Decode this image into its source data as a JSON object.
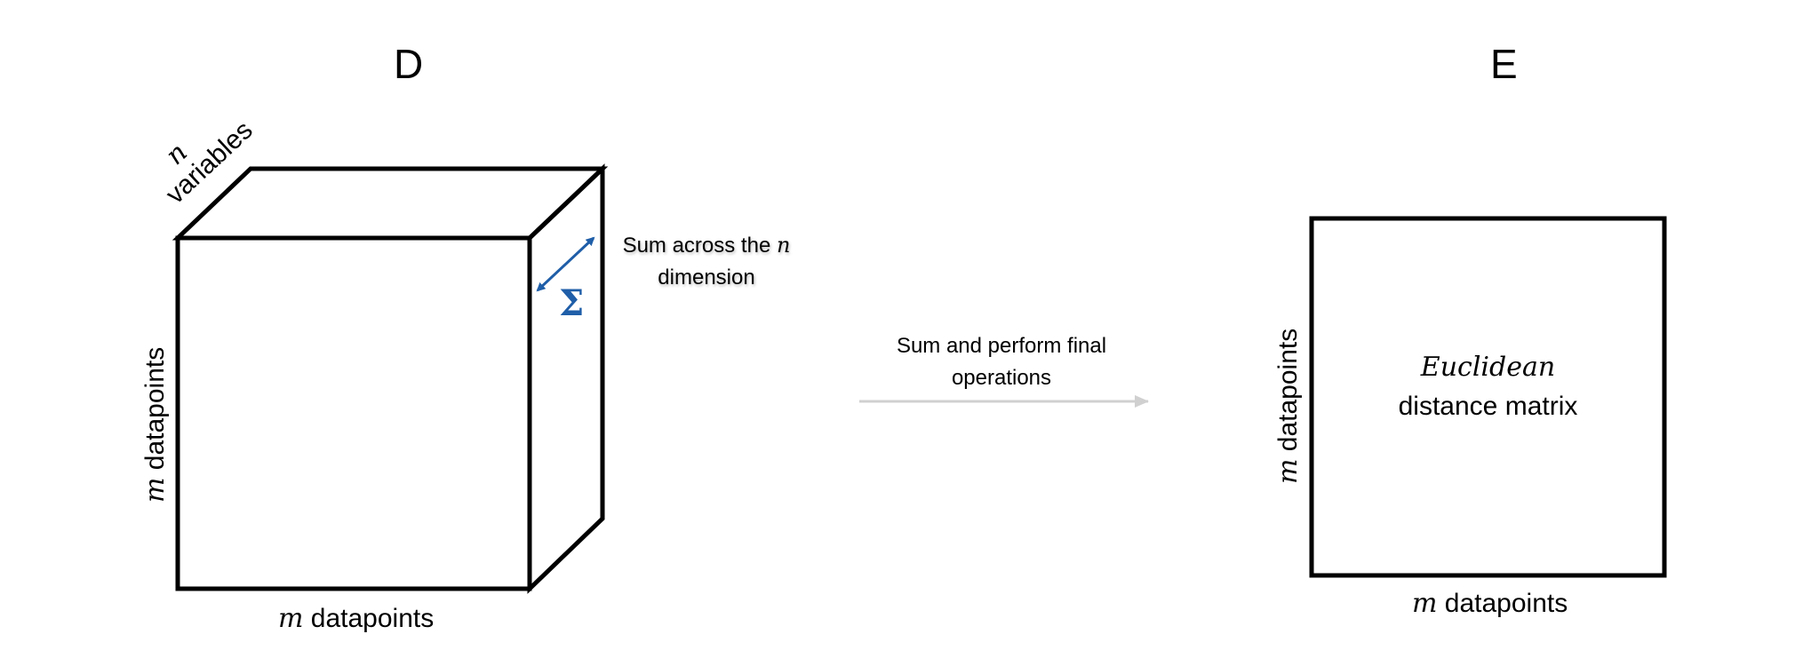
{
  "panels": {
    "left_title": "D",
    "right_title": "E"
  },
  "cube": {
    "n_symbol": "n",
    "depth_label": "variables",
    "vertical_symbol": "m",
    "vertical_label": " datapoints",
    "bottom_symbol": "m",
    "bottom_label": " datapoints",
    "sum_line1_text": "Sum across the ",
    "sum_line1_symbol": "n",
    "sum_line2": "dimension",
    "sigma": "Σ"
  },
  "arrow": {
    "line1": "Sum and perform final",
    "line2": "operations"
  },
  "matrix": {
    "title_italic": "Euclidean",
    "title_line2": "distance matrix",
    "vertical_symbol": "m",
    "vertical_label": " datapoints",
    "bottom_symbol": "m",
    "bottom_label": " datapoints"
  },
  "colors": {
    "outline": "#000000",
    "sum_arrow": "#1f5ea8",
    "sigma": "#1f5ea8",
    "process_arrow": "#d0d0d0",
    "background": "#ffffff"
  }
}
